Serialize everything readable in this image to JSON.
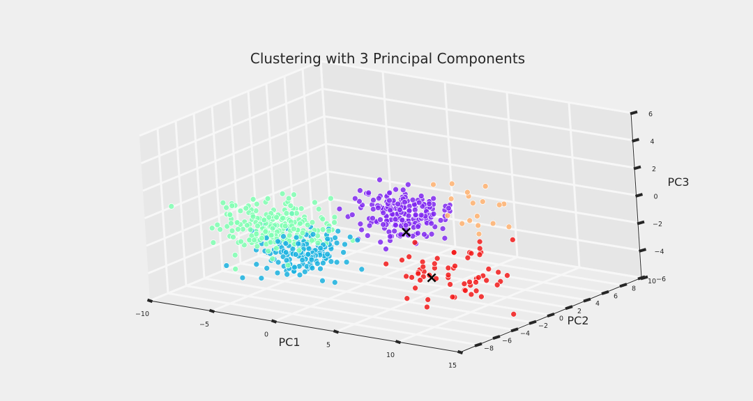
{
  "chart_data": {
    "type": "scatter",
    "title": "Clustering with 3 Principal Components",
    "xlabel": "PC1",
    "ylabel": "PC2",
    "zlabel": "PC3",
    "xlim": [
      -10,
      15
    ],
    "ylim": [
      -10,
      10
    ],
    "zlim": [
      -6,
      6
    ],
    "xticks": [
      "−10",
      "−5",
      "0",
      "5",
      "10",
      "15"
    ],
    "yticks": [
      "−8",
      "−6",
      "−4",
      "−2",
      "0",
      "2",
      "4",
      "6",
      "8",
      "10"
    ],
    "zticks": [
      "−6",
      "−4",
      "−2",
      "0",
      "2",
      "4",
      "6"
    ],
    "grid": true,
    "clusters": [
      {
        "color": "#7fffb2",
        "center": [
          -4,
          -3.7,
          -1.5
        ],
        "spread": [
          2.0,
          1.5,
          0.8
        ],
        "count": 220
      },
      {
        "color": "#1ab2df",
        "center": [
          -2,
          -4,
          -2.8
        ],
        "spread": [
          1.6,
          1.3,
          0.8
        ],
        "count": 150
      },
      {
        "color": "#8028f0",
        "center": [
          3,
          0.5,
          -0.7
        ],
        "spread": [
          1.6,
          1.2,
          0.9
        ],
        "count": 200
      },
      {
        "color": "#ffb270",
        "center": [
          8,
          2,
          0
        ],
        "spread": [
          1.5,
          1.5,
          1.2
        ],
        "count": 18
      },
      {
        "color": "#f21a1a",
        "center": [
          8,
          -1,
          -3.7
        ],
        "spread": [
          2.0,
          1.6,
          1.0
        ],
        "count": 60
      }
    ],
    "centroids": [
      {
        "label": "×",
        "position": [
          3.5,
          0.2,
          -1.8
        ]
      },
      {
        "label": "×",
        "position": [
          7,
          -2,
          -4
        ]
      }
    ]
  }
}
